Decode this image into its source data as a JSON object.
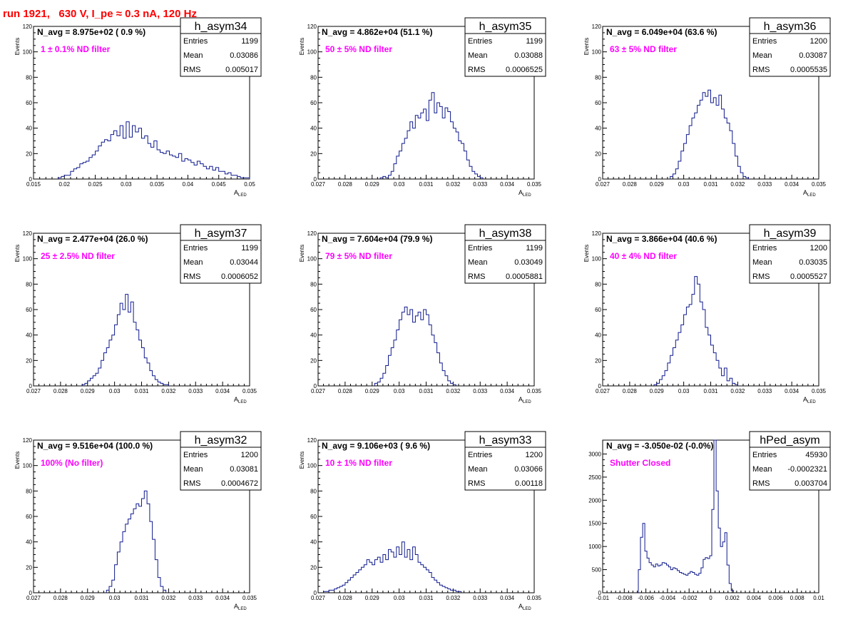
{
  "header": {
    "run_title": "run 1921,   630 V, I_pe ≈ 0.3 nA, 120 Hz"
  },
  "colors": {
    "histogram": "#0f1a8c",
    "filter_label": "#ff00ff",
    "title": "#ff0000",
    "frame": "#000000"
  },
  "chart_data": [
    {
      "type": "bar",
      "style": "step-histogram",
      "histname": "h_asym34",
      "navg": "N_avg = 8.975e+02 ( 0.9 %)",
      "label": "1 ± 0.1% ND filter",
      "stats": [
        {
          "k": "Entries",
          "v": "1199"
        },
        {
          "k": "Mean",
          "v": "0.03086"
        },
        {
          "k": "RMS",
          "v": "0.005017"
        }
      ],
      "xlabel": "A",
      "xlabel_sub": "LED",
      "ylabel": "Events",
      "xlim": [
        0.015,
        0.05
      ],
      "ylim": [
        0,
        120
      ],
      "xticks": [
        0.015,
        0.02,
        0.025,
        0.03,
        0.035,
        0.04,
        0.045,
        0.05
      ],
      "xtick_labels": [
        "0.015",
        "0.02",
        "0.025",
        "0.03",
        "0.035",
        "0.04",
        "0.045",
        "0.05"
      ],
      "yticks": [
        0,
        20,
        40,
        60,
        80,
        100,
        120
      ],
      "ytick_labels": [
        "0",
        "20",
        "40",
        "60",
        "80",
        "100",
        "120"
      ],
      "bin_start": 0.019,
      "bin_width": 0.0005,
      "values": [
        1,
        2,
        3,
        3,
        6,
        8,
        9,
        12,
        13,
        14,
        17,
        19,
        22,
        26,
        29,
        31,
        30,
        35,
        38,
        34,
        42,
        32,
        45,
        33,
        42,
        37,
        40,
        32,
        34,
        28,
        25,
        30,
        23,
        21,
        20,
        22,
        19,
        18,
        17,
        20,
        14,
        16,
        15,
        13,
        11,
        14,
        12,
        10,
        8,
        10,
        7,
        9,
        6,
        6,
        4,
        5,
        3,
        3,
        2,
        1,
        1,
        1
      ]
    },
    {
      "type": "bar",
      "style": "step-histogram",
      "histname": "h_asym35",
      "navg": "N_avg = 4.862e+04 (51.1 %)",
      "label": "50 ± 5% ND filter",
      "stats": [
        {
          "k": "Entries",
          "v": "1199"
        },
        {
          "k": "Mean",
          "v": "0.03088"
        },
        {
          "k": "RMS",
          "v": "0.0006525"
        }
      ],
      "xlabel": "A",
      "xlabel_sub": "LED",
      "ylabel": "Events",
      "xlim": [
        0.027,
        0.035
      ],
      "ylim": [
        0,
        120
      ],
      "xticks": [
        0.027,
        0.028,
        0.029,
        0.03,
        0.031,
        0.032,
        0.033,
        0.034,
        0.035
      ],
      "xtick_labels": [
        "0.027",
        "0.028",
        "0.029",
        "0.03",
        "0.031",
        "0.032",
        "0.033",
        "0.034",
        "0.035"
      ],
      "yticks": [
        0,
        20,
        40,
        60,
        80,
        100,
        120
      ],
      "ytick_labels": [
        "0",
        "20",
        "40",
        "60",
        "80",
        "100",
        "120"
      ],
      "bin_start": 0.0293,
      "bin_width": 0.0001,
      "values": [
        1,
        2,
        1,
        3,
        6,
        12,
        18,
        22,
        28,
        32,
        38,
        45,
        40,
        50,
        48,
        52,
        55,
        46,
        62,
        68,
        52,
        60,
        57,
        48,
        56,
        53,
        45,
        40,
        37,
        30,
        28,
        22,
        15,
        10,
        6,
        4,
        2,
        1
      ]
    },
    {
      "type": "bar",
      "style": "step-histogram",
      "histname": "h_asym36",
      "navg": "N_avg = 6.049e+04 (63.6 %)",
      "label": "63 ± 5% ND filter",
      "stats": [
        {
          "k": "Entries",
          "v": "1200"
        },
        {
          "k": "Mean",
          "v": "0.03087"
        },
        {
          "k": "RMS",
          "v": "0.0005535"
        }
      ],
      "xlabel": "A",
      "xlabel_sub": "LED",
      "ylabel": "Events",
      "xlim": [
        0.027,
        0.035
      ],
      "ylim": [
        0,
        120
      ],
      "xticks": [
        0.027,
        0.028,
        0.029,
        0.03,
        0.031,
        0.032,
        0.033,
        0.034,
        0.035
      ],
      "xtick_labels": [
        "0.027",
        "0.028",
        "0.029",
        "0.03",
        "0.031",
        "0.032",
        "0.033",
        "0.034",
        "0.035"
      ],
      "yticks": [
        0,
        20,
        40,
        60,
        80,
        100,
        120
      ],
      "ytick_labels": [
        "0",
        "20",
        "40",
        "60",
        "80",
        "100",
        "120"
      ],
      "bin_start": 0.0295,
      "bin_width": 0.0001,
      "values": [
        2,
        4,
        8,
        14,
        22,
        28,
        35,
        42,
        48,
        52,
        58,
        62,
        68,
        65,
        70,
        60,
        64,
        58,
        66,
        55,
        48,
        44,
        38,
        28,
        18,
        10,
        5,
        2,
        1
      ]
    },
    {
      "type": "bar",
      "style": "step-histogram",
      "histname": "h_asym37",
      "navg": "N_avg = 2.477e+04 (26.0 %)",
      "label": "25 ± 2.5% ND filter",
      "stats": [
        {
          "k": "Entries",
          "v": "1199"
        },
        {
          "k": "Mean",
          "v": "0.03044"
        },
        {
          "k": "RMS",
          "v": "0.0006052"
        }
      ],
      "xlabel": "A",
      "xlabel_sub": "LED",
      "ylabel": "Events",
      "xlim": [
        0.027,
        0.035
      ],
      "ylim": [
        0,
        120
      ],
      "xticks": [
        0.027,
        0.028,
        0.029,
        0.03,
        0.031,
        0.032,
        0.033,
        0.034,
        0.035
      ],
      "xtick_labels": [
        "0.027",
        "0.028",
        "0.029",
        "0.03",
        "0.031",
        "0.032",
        "0.033",
        "0.034",
        "0.035"
      ],
      "yticks": [
        0,
        20,
        40,
        60,
        80,
        100,
        120
      ],
      "ytick_labels": [
        "0",
        "20",
        "40",
        "60",
        "80",
        "100",
        "120"
      ],
      "bin_start": 0.0288,
      "bin_width": 0.0001,
      "values": [
        1,
        2,
        4,
        6,
        8,
        10,
        14,
        20,
        26,
        30,
        36,
        40,
        48,
        56,
        65,
        60,
        72,
        58,
        66,
        50,
        44,
        36,
        30,
        22,
        18,
        12,
        8,
        5,
        3,
        2,
        1,
        1
      ]
    },
    {
      "type": "bar",
      "style": "step-histogram",
      "histname": "h_asym38",
      "navg": "N_avg = 7.604e+04 (79.9 %)",
      "label": "79 ± 5% ND filter",
      "stats": [
        {
          "k": "Entries",
          "v": "1199"
        },
        {
          "k": "Mean",
          "v": "0.03049"
        },
        {
          "k": "RMS",
          "v": "0.0005881"
        }
      ],
      "xlabel": "A",
      "xlabel_sub": "LED",
      "ylabel": "Events",
      "xlim": [
        0.027,
        0.035
      ],
      "ylim": [
        0,
        120
      ],
      "xticks": [
        0.027,
        0.028,
        0.029,
        0.03,
        0.031,
        0.032,
        0.033,
        0.034,
        0.035
      ],
      "xtick_labels": [
        "0.027",
        "0.028",
        "0.029",
        "0.03",
        "0.031",
        "0.032",
        "0.033",
        "0.034",
        "0.035"
      ],
      "yticks": [
        0,
        20,
        40,
        60,
        80,
        100,
        120
      ],
      "ytick_labels": [
        "0",
        "20",
        "40",
        "60",
        "80",
        "100",
        "120"
      ],
      "bin_start": 0.0291,
      "bin_width": 0.0001,
      "values": [
        2,
        3,
        6,
        10,
        16,
        24,
        30,
        36,
        44,
        52,
        58,
        62,
        56,
        60,
        50,
        55,
        58,
        52,
        60,
        56,
        48,
        40,
        34,
        26,
        18,
        12,
        8,
        4,
        2,
        1
      ]
    },
    {
      "type": "bar",
      "style": "step-histogram",
      "histname": "h_asym39",
      "navg": "N_avg = 3.866e+04 (40.6 %)",
      "label": "40 ± 4% ND filter",
      "stats": [
        {
          "k": "Entries",
          "v": "1200"
        },
        {
          "k": "Mean",
          "v": "0.03035"
        },
        {
          "k": "RMS",
          "v": "0.0005527"
        }
      ],
      "xlabel": "A",
      "xlabel_sub": "LED",
      "ylabel": "Events",
      "xlim": [
        0.027,
        0.035
      ],
      "ylim": [
        0,
        120
      ],
      "xticks": [
        0.027,
        0.028,
        0.029,
        0.03,
        0.031,
        0.032,
        0.033,
        0.034,
        0.035
      ],
      "xtick_labels": [
        "0.027",
        "0.028",
        "0.029",
        "0.03",
        "0.031",
        "0.032",
        "0.033",
        "0.034",
        "0.035"
      ],
      "yticks": [
        0,
        20,
        40,
        60,
        80,
        100,
        120
      ],
      "ytick_labels": [
        "0",
        "20",
        "40",
        "60",
        "80",
        "100",
        "120"
      ],
      "bin_start": 0.0289,
      "bin_width": 0.0001,
      "values": [
        1,
        2,
        5,
        8,
        12,
        18,
        24,
        30,
        36,
        42,
        48,
        56,
        62,
        64,
        72,
        86,
        80,
        66,
        60,
        46,
        40,
        32,
        26,
        20,
        14,
        8,
        14,
        4,
        6,
        2,
        1
      ]
    },
    {
      "type": "bar",
      "style": "step-histogram",
      "histname": "h_asym32",
      "navg": "N_avg = 9.516e+04 (100.0 %)",
      "label": "100% (No filter)",
      "stats": [
        {
          "k": "Entries",
          "v": "1200"
        },
        {
          "k": "Mean",
          "v": "0.03081"
        },
        {
          "k": "RMS",
          "v": "0.0004672"
        }
      ],
      "xlabel": "A",
      "xlabel_sub": "LED",
      "ylabel": "Events",
      "xlim": [
        0.027,
        0.035
      ],
      "ylim": [
        0,
        120
      ],
      "xticks": [
        0.027,
        0.028,
        0.029,
        0.03,
        0.031,
        0.032,
        0.033,
        0.034,
        0.035
      ],
      "xtick_labels": [
        "0.027",
        "0.028",
        "0.029",
        "0.03",
        "0.031",
        "0.032",
        "0.033",
        "0.034",
        "0.035"
      ],
      "yticks": [
        0,
        20,
        40,
        60,
        80,
        100,
        120
      ],
      "ytick_labels": [
        "0",
        "20",
        "40",
        "60",
        "80",
        "100",
        "120"
      ],
      "bin_start": 0.0297,
      "bin_width": 0.0001,
      "values": [
        2,
        5,
        10,
        22,
        32,
        40,
        48,
        54,
        58,
        62,
        66,
        70,
        68,
        74,
        80,
        70,
        56,
        42,
        26,
        12,
        5,
        2
      ]
    },
    {
      "type": "bar",
      "style": "step-histogram",
      "histname": "h_asym33",
      "navg": "N_avg = 9.106e+03 ( 9.6 %)",
      "label": "10 ± 1% ND filter",
      "stats": [
        {
          "k": "Entries",
          "v": "1200"
        },
        {
          "k": "Mean",
          "v": "0.03066"
        },
        {
          "k": "RMS",
          "v": "0.00118"
        }
      ],
      "xlabel": "A",
      "xlabel_sub": "LED",
      "ylabel": "Events",
      "xlim": [
        0.027,
        0.035
      ],
      "ylim": [
        0,
        120
      ],
      "xticks": [
        0.027,
        0.028,
        0.029,
        0.03,
        0.031,
        0.032,
        0.033,
        0.034,
        0.035
      ],
      "xtick_labels": [
        "0.027",
        "0.028",
        "0.029",
        "0.03",
        "0.031",
        "0.032",
        "0.033",
        "0.034",
        "0.035"
      ],
      "yticks": [
        0,
        20,
        40,
        60,
        80,
        100,
        120
      ],
      "ytick_labels": [
        "0",
        "20",
        "40",
        "60",
        "80",
        "100",
        "120"
      ],
      "bin_start": 0.0272,
      "bin_width": 0.0001,
      "values": [
        1,
        1,
        2,
        2,
        3,
        4,
        5,
        6,
        8,
        10,
        12,
        14,
        16,
        18,
        20,
        22,
        26,
        24,
        22,
        26,
        28,
        24,
        30,
        26,
        34,
        32,
        28,
        36,
        30,
        40,
        28,
        34,
        26,
        36,
        30,
        24,
        22,
        20,
        18,
        16,
        12,
        10,
        8,
        6,
        5,
        4,
        3,
        2,
        2,
        1,
        1
      ]
    },
    {
      "type": "bar",
      "style": "step-histogram",
      "histname": "hPed_asym",
      "navg": "N_avg = -3.050e-02 (-0.0%)",
      "label": "Shutter Closed",
      "stats": [
        {
          "k": "Entries",
          "v": "45930"
        },
        {
          "k": "Mean",
          "v": "-0.0002321"
        },
        {
          "k": "RMS",
          "v": "0.003704"
        }
      ],
      "xlabel": "",
      "xlabel_sub": "",
      "ylabel": "",
      "xlim": [
        -0.01,
        0.01
      ],
      "ylim": [
        0,
        3300
      ],
      "xticks": [
        -0.01,
        -0.008,
        -0.006,
        -0.004,
        -0.002,
        0,
        0.002,
        0.004,
        0.006,
        0.008,
        0.01
      ],
      "xtick_labels": [
        "-0.01",
        "-0.008",
        "-0.006",
        "-0.004",
        "-0.002",
        "0",
        "0.002",
        "0.004",
        "0.006",
        "0.008",
        "0.01"
      ],
      "yticks": [
        0,
        500,
        1000,
        1500,
        2000,
        2500,
        3000
      ],
      "ytick_labels": [
        "0",
        "500",
        "1000",
        "1500",
        "2000",
        "2500",
        "3000"
      ],
      "bin_start": -0.0067,
      "bin_width": 0.0002,
      "values": [
        500,
        1200,
        1500,
        900,
        750,
        650,
        600,
        560,
        620,
        580,
        600,
        650,
        640,
        600,
        560,
        500,
        540,
        520,
        480,
        440,
        420,
        400,
        380,
        420,
        460,
        440,
        400,
        380,
        420,
        540,
        720,
        760,
        740,
        800,
        1800,
        3300,
        2200,
        1400,
        1000,
        1100,
        1300,
        600,
        200,
        50
      ]
    }
  ]
}
